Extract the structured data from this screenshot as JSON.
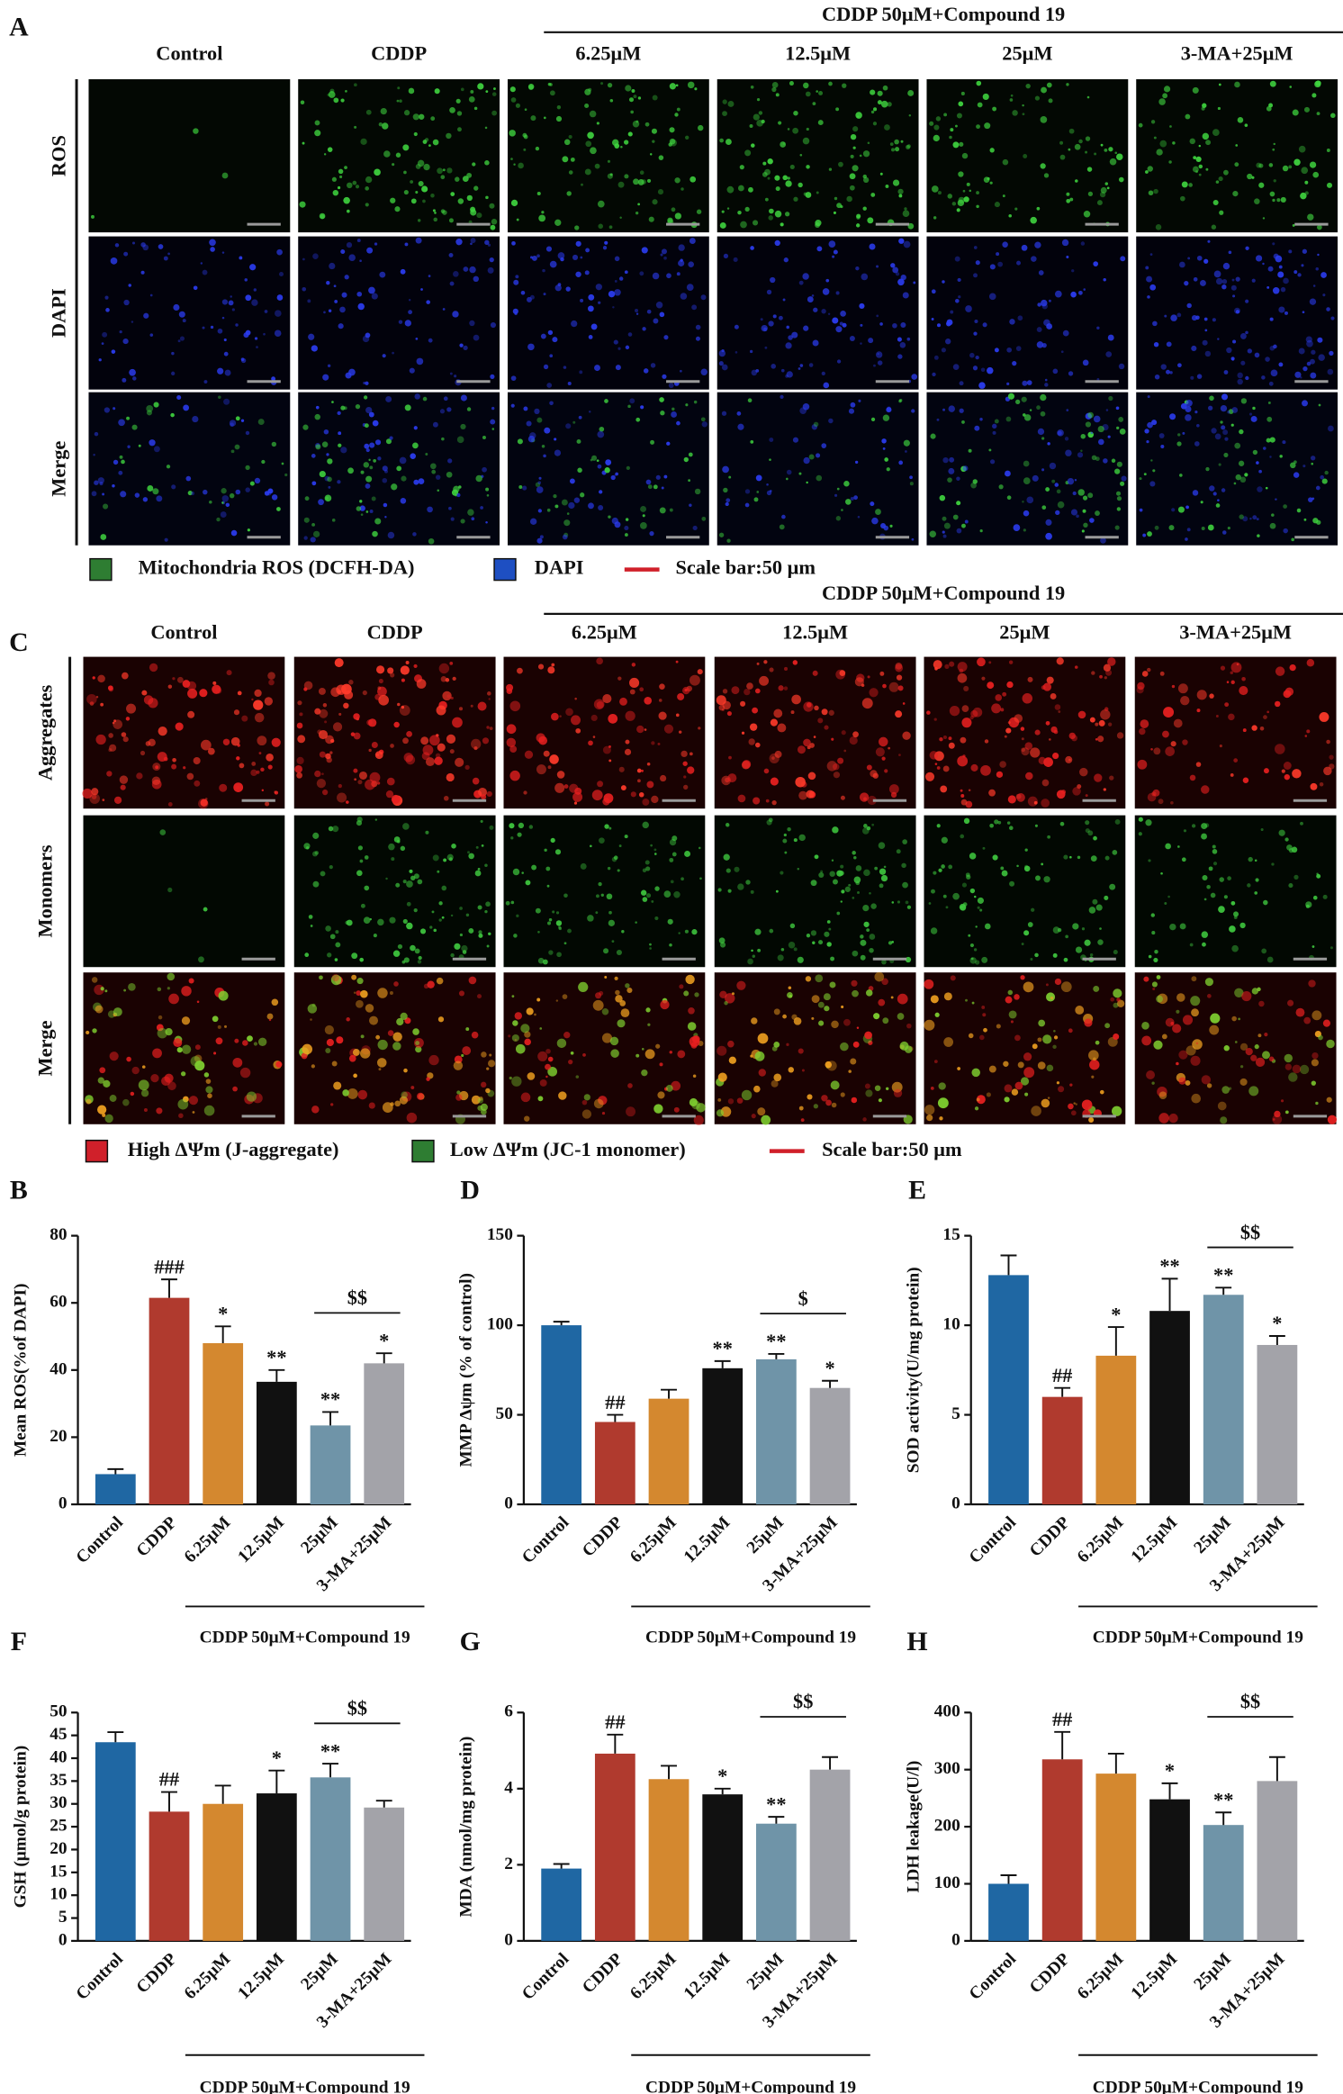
{
  "panels": [
    {
      "label": "A",
      "group_label": "CDDP 50μM+Compound 19",
      "columns": [
        "Control",
        "CDDP",
        "6.25μM",
        "12.5μM",
        "25μM",
        "3-MA+25μM"
      ],
      "rows": [
        "ROS",
        "DAPI",
        "Merge"
      ],
      "legend": [
        {
          "text": "Mitochondria ROS (DCFH-DA)",
          "color": "#2e7d32"
        },
        {
          "text": "DAPI",
          "color": "#1e4fc2"
        },
        {
          "text": "Scale bar:50 μm",
          "color": "#d0202a"
        }
      ]
    },
    {
      "label": "C",
      "group_label": "CDDP 50μM+Compound 19",
      "columns": [
        "Control",
        "CDDP",
        "6.25μM",
        "12.5μM",
        "25μM",
        "3-MA+25μM"
      ],
      "rows": [
        "Aggregates",
        "Monomers",
        "Merge"
      ],
      "legend": [
        {
          "text": "High ΔΨm (J-aggregate)",
          "color": "#d0202a"
        },
        {
          "text": "Low ΔΨm (JC-1 monomer)",
          "color": "#2e7d32"
        },
        {
          "text": "Scale bar:50 μm",
          "color": "#d0202a"
        }
      ]
    }
  ],
  "chart_data": [
    {
      "type": "bar",
      "label": "B",
      "y_label": "Mean ROS(%of DAPI)",
      "categories": [
        "Control",
        "CDDP",
        "6.25μM",
        "12.5μM",
        "25μM",
        "3-MA+25μM"
      ],
      "values": [
        9,
        61.5,
        48,
        36.5,
        23.5,
        42
      ],
      "errors": [
        1.5,
        5.5,
        5,
        3.5,
        4,
        3
      ],
      "annotations": [
        null,
        "###",
        "*",
        "**",
        "**",
        "*"
      ],
      "bracket_label": "$$",
      "group_label": "CDDP 50μM+Compound 19",
      "colors": [
        "#1f67a3",
        "#b03a2e",
        "#d4882f",
        "#111111",
        "#6f94a8",
        "#a3a3a9"
      ],
      "ylim": [
        0,
        80
      ],
      "yticks": [
        0,
        20,
        40,
        60,
        80
      ]
    },
    {
      "type": "bar",
      "label": "D",
      "y_label": "MMP Δψm (% of control)",
      "categories": [
        "Control",
        "CDDP",
        "6.25μM",
        "12.5μM",
        "25μM",
        "3-MA+25μM"
      ],
      "values": [
        100,
        46,
        59,
        76,
        81,
        65
      ],
      "errors": [
        2,
        4,
        5,
        4,
        3,
        4
      ],
      "annotations": [
        null,
        "##",
        null,
        "**",
        "**",
        "*"
      ],
      "bracket_label": "$",
      "group_label": "CDDP 50μM+Compound 19",
      "colors": [
        "#1f67a3",
        "#b03a2e",
        "#d4882f",
        "#111111",
        "#6f94a8",
        "#a3a3a9"
      ],
      "ylim": [
        0,
        150
      ],
      "yticks": [
        0,
        50,
        100,
        150
      ]
    },
    {
      "type": "bar",
      "label": "E",
      "y_label": "SOD activity(U/mg protein)",
      "categories": [
        "Control",
        "CDDP",
        "6.25μM",
        "12.5μM",
        "25μM",
        "3-MA+25μM"
      ],
      "values": [
        12.8,
        6.0,
        8.3,
        10.8,
        11.7,
        8.9
      ],
      "errors": [
        1.1,
        0.5,
        1.6,
        1.8,
        0.4,
        0.5
      ],
      "annotations": [
        null,
        "##",
        "*",
        "**",
        "**",
        "*"
      ],
      "bracket_label": "$$",
      "group_label": "CDDP 50μM+Compound 19",
      "colors": [
        "#1f67a3",
        "#b03a2e",
        "#d4882f",
        "#111111",
        "#6f94a8",
        "#a3a3a9"
      ],
      "ylim": [
        0,
        15
      ],
      "yticks": [
        0,
        5,
        10,
        15
      ]
    },
    {
      "type": "bar",
      "label": "F",
      "y_label": "GSH (μmol/g protein)",
      "categories": [
        "Control",
        "CDDP",
        "6.25μM",
        "12.5μM",
        "25μM",
        "3-MA+25μM"
      ],
      "values": [
        43.5,
        28.3,
        30,
        32.3,
        35.8,
        29.2
      ],
      "errors": [
        2.2,
        4.3,
        4,
        5,
        3,
        1.5
      ],
      "annotations": [
        null,
        "##",
        null,
        "*",
        "**",
        null
      ],
      "bracket_label": "$$",
      "group_label": "CDDP 50μM+Compound 19",
      "colors": [
        "#1f67a3",
        "#b03a2e",
        "#d4882f",
        "#111111",
        "#6f94a8",
        "#a3a3a9"
      ],
      "ylim": [
        0,
        50
      ],
      "yticks": [
        0,
        5,
        10,
        15,
        20,
        25,
        30,
        35,
        40,
        45,
        50
      ]
    },
    {
      "type": "bar",
      "label": "G",
      "y_label": "MDA (nmol/mg protein)",
      "categories": [
        "Control",
        "CDDP",
        "6.25μM",
        "12.5μM",
        "25μM",
        "3-MA+25μM"
      ],
      "values": [
        1.9,
        4.92,
        4.25,
        3.85,
        3.08,
        4.5
      ],
      "errors": [
        0.12,
        0.5,
        0.35,
        0.15,
        0.18,
        0.33
      ],
      "annotations": [
        null,
        "##",
        null,
        "*",
        "**",
        null
      ],
      "bracket_label": "$$",
      "group_label": "CDDP 50μM+Compound 19",
      "colors": [
        "#1f67a3",
        "#b03a2e",
        "#d4882f",
        "#111111",
        "#6f94a8",
        "#a3a3a9"
      ],
      "ylim": [
        0,
        6
      ],
      "yticks": [
        0,
        2,
        4,
        6
      ]
    },
    {
      "type": "bar",
      "label": "H",
      "y_label": "LDH leakage(U/l)",
      "categories": [
        "Control",
        "CDDP",
        "6.25μM",
        "12.5μM",
        "25μM",
        "3-MA+25μM"
      ],
      "values": [
        100,
        318,
        293,
        248,
        203,
        280
      ],
      "errors": [
        15,
        48,
        35,
        28,
        22,
        42
      ],
      "annotations": [
        null,
        "##",
        null,
        "*",
        "**",
        null
      ],
      "bracket_label": "$$",
      "group_label": "CDDP 50μM+Compound 19",
      "colors": [
        "#1f67a3",
        "#b03a2e",
        "#d4882f",
        "#111111",
        "#6f94a8",
        "#a3a3a9"
      ],
      "ylim": [
        0,
        400
      ],
      "yticks": [
        0,
        100,
        200,
        300,
        400
      ]
    }
  ]
}
